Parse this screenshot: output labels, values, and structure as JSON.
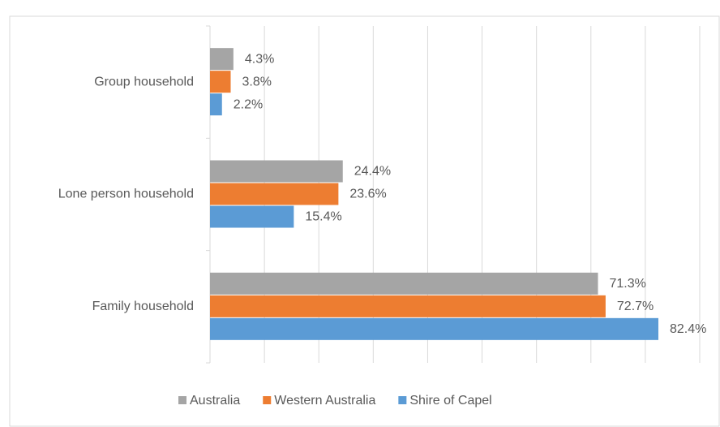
{
  "chart_data": {
    "type": "barh",
    "categories": [
      "Group household",
      "Lone person household",
      "Family household"
    ],
    "series": [
      {
        "name": "Australia",
        "color": "#a5a5a5",
        "values": [
          4.3,
          24.4,
          71.3
        ],
        "value_labels": [
          "4.3%",
          "24.4%",
          "71.3%"
        ]
      },
      {
        "name": "Western Australia",
        "color": "#ed7d31",
        "values": [
          3.8,
          23.6,
          72.7
        ],
        "value_labels": [
          "3.8%",
          "23.6%",
          "72.7%"
        ]
      },
      {
        "name": "Shire of Capel",
        "color": "#5b9bd5",
        "values": [
          2.2,
          15.4,
          82.4
        ],
        "value_labels": [
          "2.2%",
          "15.4%",
          "82.4%"
        ]
      }
    ],
    "xlim": [
      0,
      90
    ],
    "xticks": [
      0,
      10,
      20,
      30,
      40,
      50,
      60,
      70,
      80,
      90
    ],
    "grid": true,
    "legend": "bottom"
  }
}
